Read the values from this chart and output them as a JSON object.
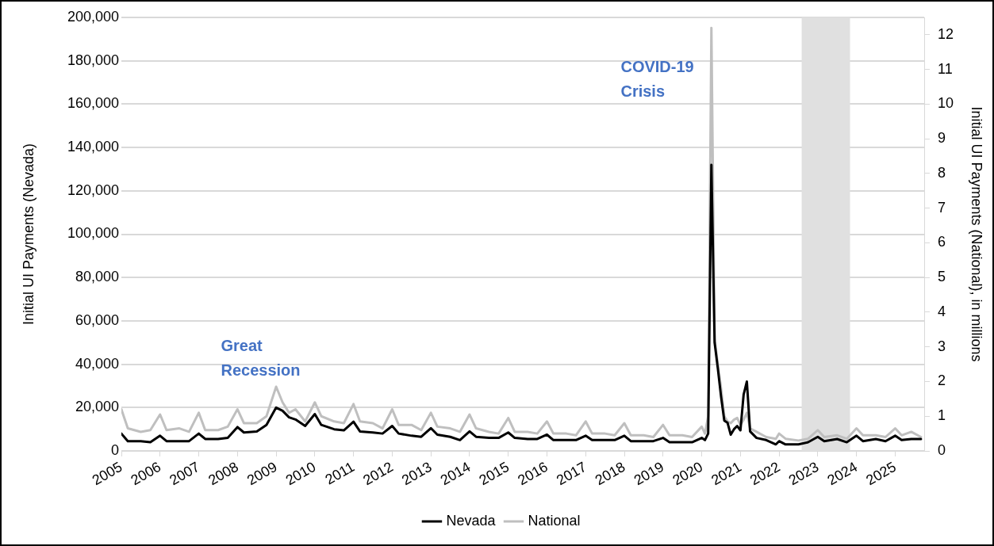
{
  "chart_data": {
    "type": "line",
    "ylabel": "Initial UI Payments (Nevada)",
    "y2label": "Initial UI Payments (National), in millions",
    "x": [
      "2005-01",
      "2005-03",
      "2005-07",
      "2005-10",
      "2006-01",
      "2006-03",
      "2006-07",
      "2006-10",
      "2007-01",
      "2007-03",
      "2007-07",
      "2007-10",
      "2008-01",
      "2008-03",
      "2008-07",
      "2008-10",
      "2009-01",
      "2009-03",
      "2009-05",
      "2009-07",
      "2009-10",
      "2010-01",
      "2010-03",
      "2010-07",
      "2010-10",
      "2011-01",
      "2011-03",
      "2011-07",
      "2011-10",
      "2012-01",
      "2012-03",
      "2012-07",
      "2012-10",
      "2013-01",
      "2013-03",
      "2013-07",
      "2013-10",
      "2014-01",
      "2014-03",
      "2014-07",
      "2014-10",
      "2015-01",
      "2015-03",
      "2015-07",
      "2015-10",
      "2016-01",
      "2016-03",
      "2016-07",
      "2016-10",
      "2017-01",
      "2017-03",
      "2017-07",
      "2017-10",
      "2018-01",
      "2018-03",
      "2018-07",
      "2018-10",
      "2019-01",
      "2019-03",
      "2019-07",
      "2019-10",
      "2020-01",
      "2020-02",
      "2020-03",
      "2020-04",
      "2020-05",
      "2020-06",
      "2020-07",
      "2020-08",
      "2020-09",
      "2020-10",
      "2020-11",
      "2020-12",
      "2021-01",
      "2021-02",
      "2021-03",
      "2021-04",
      "2021-06",
      "2021-09",
      "2021-12",
      "2022-01",
      "2022-03",
      "2022-07",
      "2022-10",
      "2023-01",
      "2023-03",
      "2023-07",
      "2023-10",
      "2024-01",
      "2024-03",
      "2024-07",
      "2024-10",
      "2025-01",
      "2025-03",
      "2025-06",
      "2025-09"
    ],
    "series": [
      {
        "name": "Nevada",
        "color": "#000000",
        "values": [
          8000,
          4500,
          4500,
          4000,
          7000,
          4500,
          4500,
          4500,
          8000,
          5500,
          5500,
          6000,
          11000,
          8500,
          9000,
          12000,
          20000,
          18500,
          15500,
          14500,
          11500,
          17000,
          12000,
          10000,
          9500,
          13500,
          9000,
          8500,
          8000,
          11500,
          8000,
          7000,
          6500,
          10500,
          7500,
          6500,
          5000,
          9000,
          6500,
          6000,
          6000,
          8500,
          6000,
          5500,
          5500,
          7500,
          5000,
          5000,
          5000,
          7000,
          5000,
          5000,
          5000,
          7000,
          4500,
          4500,
          4500,
          6000,
          4000,
          4000,
          4000,
          6000,
          5000,
          8000,
          132000,
          50000,
          38000,
          25000,
          14000,
          13000,
          7500,
          10000,
          11500,
          9500,
          26000,
          32000,
          9000,
          6000,
          5000,
          3000,
          4500,
          3000,
          3000,
          4000,
          6500,
          4500,
          5500,
          4000,
          7000,
          4500,
          5500,
          4500,
          7000,
          5000,
          5500,
          5500
        ]
      },
      {
        "name": "National",
        "color": "#bfbfbf",
        "axis": "y2",
        "values": [
          1.2,
          0.65,
          0.55,
          0.6,
          1.05,
          0.6,
          0.65,
          0.55,
          1.1,
          0.6,
          0.6,
          0.7,
          1.2,
          0.8,
          0.8,
          1.0,
          1.85,
          1.4,
          1.1,
          1.2,
          0.85,
          1.4,
          1.0,
          0.85,
          0.8,
          1.35,
          0.85,
          0.8,
          0.65,
          1.2,
          0.75,
          0.75,
          0.6,
          1.1,
          0.7,
          0.65,
          0.55,
          1.05,
          0.65,
          0.55,
          0.5,
          0.95,
          0.55,
          0.55,
          0.5,
          0.85,
          0.5,
          0.5,
          0.45,
          0.85,
          0.5,
          0.5,
          0.45,
          0.8,
          0.45,
          0.45,
          0.4,
          0.75,
          0.45,
          0.45,
          0.4,
          0.7,
          0.5,
          1.0,
          12.2,
          3.2,
          2.5,
          1.8,
          1.0,
          0.85,
          0.8,
          0.9,
          0.95,
          0.75,
          0.9,
          1.1,
          0.65,
          0.55,
          0.4,
          0.35,
          0.5,
          0.35,
          0.3,
          0.35,
          0.6,
          0.4,
          0.45,
          0.35,
          0.65,
          0.45,
          0.45,
          0.4,
          0.65,
          0.45,
          0.55,
          0.4
        ]
      }
    ],
    "xlim": [
      "2005-01",
      "2025-10"
    ],
    "xticks": [
      "2005",
      "2006",
      "2007",
      "2008",
      "2009",
      "2010",
      "2011",
      "2012",
      "2013",
      "2014",
      "2015",
      "2016",
      "2017",
      "2018",
      "2019",
      "2020",
      "2021",
      "2022",
      "2023",
      "2024",
      "2025"
    ],
    "ylim": [
      0,
      200000
    ],
    "yticks": [
      0,
      {
        "value": 20000,
        "label": "20,000"
      },
      {
        "value": 40000,
        "label": "40,000"
      },
      {
        "value": 60000,
        "label": "60,000"
      },
      {
        "value": 80000,
        "label": "80,000"
      },
      {
        "value": 100000,
        "label": "100,000"
      },
      {
        "value": 120000,
        "label": "120,000"
      },
      {
        "value": 140000,
        "label": "140,000"
      },
      {
        "value": 160000,
        "label": "160,000"
      },
      {
        "value": 180000,
        "label": "180,000"
      },
      {
        "value": 200000,
        "label": "200,000"
      }
    ],
    "y2lim": [
      0,
      12.5
    ],
    "y2ticks": [
      0,
      1,
      2,
      3,
      4,
      5,
      6,
      7,
      8,
      9,
      10,
      11,
      12
    ],
    "bands": [
      {
        "axis": "x",
        "from": "2022-08",
        "to": "2023-11",
        "color": "#e0e0e0"
      }
    ],
    "annotations": [
      "Great Recession",
      "COVID-19 Crisis"
    ],
    "grid": "y",
    "legend": "bottom",
    "marker": "none",
    "line_style": "solid"
  }
}
